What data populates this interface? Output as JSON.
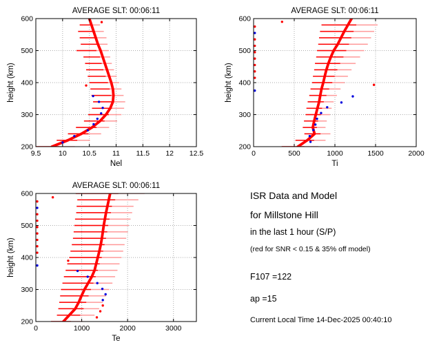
{
  "window": {
    "background": "#ffffff"
  },
  "info_panel": {
    "line1": "ISR Data and Model",
    "line2": "for Millstone Hill",
    "line3": "in the last 1 hour (S/P)",
    "line4": "(red for SNR < 0.15 & 35% off model)",
    "f107": "F107 =122",
    "ap": "ap =15",
    "local_time": "Current Local Time 14-Dec-2025 00:40:10"
  },
  "colors": {
    "model_curve": "#ff0000",
    "error_bar": "#ff0000",
    "error_bar_light": "#ff9999",
    "accepted_point": "#0000dd",
    "rejected_point": "#ff0000",
    "grid": "#aaaaaa",
    "axis": "#000000"
  },
  "chart_data": [
    {
      "type": "line",
      "title": "AVERAGE SLT: 00:06:11",
      "xlabel": "Nel",
      "ylabel": "height (km)",
      "xlim": [
        9.5,
        12.5
      ],
      "ylim": [
        200,
        600
      ],
      "xticks": [
        9.5,
        10,
        10.5,
        11,
        11.5,
        12,
        12.5
      ],
      "yticks": [
        200,
        300,
        400,
        500,
        600
      ],
      "grid": true,
      "legend_position": "none",
      "model_profile": {
        "heights": [
          200,
          220,
          240,
          260,
          280,
          300,
          320,
          340,
          360,
          380,
          400,
          420,
          440,
          460,
          480,
          500,
          520,
          540,
          560,
          580,
          600
        ],
        "values": [
          9.8,
          10.1,
          10.35,
          10.55,
          10.7,
          10.81,
          10.89,
          10.94,
          10.95,
          10.94,
          10.91,
          10.87,
          10.83,
          10.79,
          10.75,
          10.71,
          10.66,
          10.62,
          10.58,
          10.54,
          10.5
        ]
      },
      "error_bars": [
        [
          200,
          9.85,
          0.38
        ],
        [
          220,
          10.2,
          0.31
        ],
        [
          240,
          10.41,
          0.31
        ],
        [
          260,
          10.56,
          0.31
        ],
        [
          280,
          10.71,
          0.31
        ],
        [
          300,
          10.79,
          0.31
        ],
        [
          320,
          10.85,
          0.3
        ],
        [
          340,
          10.87,
          0.3
        ],
        [
          360,
          10.84,
          0.3
        ],
        [
          380,
          10.81,
          0.29
        ],
        [
          400,
          10.78,
          0.28
        ],
        [
          420,
          10.74,
          0.27
        ],
        [
          440,
          10.7,
          0.26
        ],
        [
          460,
          10.67,
          0.25
        ],
        [
          480,
          10.64,
          0.25
        ],
        [
          500,
          10.56,
          0.3
        ],
        [
          520,
          10.59,
          0.25
        ],
        [
          540,
          10.57,
          0.25
        ],
        [
          560,
          10.53,
          0.24
        ],
        [
          580,
          10.51,
          0.19
        ]
      ],
      "accepted_points": [
        [
          10.0,
          213
        ],
        [
          10.22,
          233
        ],
        [
          10.47,
          251
        ],
        [
          10.58,
          270
        ],
        [
          10.65,
          287
        ],
        [
          10.72,
          304
        ],
        [
          10.75,
          321
        ],
        [
          10.68,
          340
        ],
        [
          10.57,
          358
        ]
      ],
      "rejected_points": [
        [
          10.44,
          391
        ],
        [
          10.73,
          589
        ]
      ]
    },
    {
      "type": "line",
      "title": "AVERAGE SLT: 00:06:11",
      "xlabel": "Ti",
      "ylabel": "height (km)",
      "xlim": [
        0,
        2000
      ],
      "ylim": [
        200,
        600
      ],
      "xticks": [
        0,
        500,
        1000,
        1500,
        2000
      ],
      "yticks": [
        200,
        300,
        400,
        500,
        600
      ],
      "grid": true,
      "legend_position": "none",
      "model_profile": {
        "heights": [
          200,
          220,
          240,
          260,
          280,
          300,
          320,
          340,
          360,
          380,
          400,
          420,
          440,
          460,
          480,
          500,
          520,
          540,
          560,
          580,
          600
        ],
        "values": [
          545,
          660,
          750,
          728,
          745,
          765,
          785,
          806,
          820,
          835,
          857,
          875,
          895,
          920,
          950,
          985,
          1035,
          1075,
          1115,
          1160,
          1205
        ]
      },
      "error_bars": [
        [
          200,
          570,
          225
        ],
        [
          220,
          700,
          185
        ],
        [
          240,
          785,
          160
        ],
        [
          260,
          745,
          140
        ],
        [
          280,
          760,
          140
        ],
        [
          300,
          790,
          150
        ],
        [
          320,
          805,
          155
        ],
        [
          340,
          825,
          160
        ],
        [
          360,
          855,
          170
        ],
        [
          380,
          885,
          185
        ],
        [
          400,
          920,
          200
        ],
        [
          420,
          945,
          215
        ],
        [
          440,
          975,
          230
        ],
        [
          460,
          1005,
          250
        ],
        [
          480,
          1040,
          270
        ],
        [
          500,
          1070,
          290
        ],
        [
          520,
          1100,
          305
        ],
        [
          540,
          1125,
          320
        ],
        [
          560,
          1150,
          333
        ],
        [
          580,
          1180,
          345
        ]
      ],
      "accepted_points": [
        [
          700,
          215
        ],
        [
          690,
          233
        ],
        [
          735,
          252
        ],
        [
          760,
          269
        ],
        [
          780,
          287
        ],
        [
          830,
          305
        ],
        [
          905,
          323
        ],
        [
          1080,
          338
        ],
        [
          1220,
          357
        ],
        [
          15,
          375
        ],
        [
          15,
          555
        ]
      ],
      "rejected_points": [
        [
          350,
          590
        ],
        [
          1480,
          393
        ],
        [
          15,
          415
        ],
        [
          15,
          435
        ],
        [
          15,
          455
        ],
        [
          15,
          475
        ],
        [
          15,
          495
        ],
        [
          15,
          515
        ],
        [
          15,
          535
        ],
        [
          15,
          575
        ]
      ]
    },
    {
      "type": "line",
      "title": "AVERAGE SLT: 00:06:11",
      "xlabel": "Te",
      "ylabel": "height (km)",
      "xlim": [
        0,
        3500
      ],
      "ylim": [
        200,
        600
      ],
      "xticks": [
        0,
        1000,
        2000,
        3000
      ],
      "yticks": [
        200,
        300,
        400,
        500,
        600
      ],
      "grid": true,
      "legend_position": "none",
      "model_profile": {
        "heights": [
          200,
          220,
          240,
          260,
          280,
          300,
          320,
          340,
          360,
          380,
          400,
          420,
          440,
          460,
          480,
          500,
          520,
          540,
          560,
          580,
          600
        ],
        "values": [
          600,
          730,
          860,
          935,
          995,
          1060,
          1140,
          1220,
          1280,
          1315,
          1350,
          1385,
          1415,
          1440,
          1460,
          1480,
          1505,
          1530,
          1560,
          1590,
          1620
        ]
      },
      "error_bars": [
        [
          200,
          680,
          350
        ],
        [
          220,
          870,
          410
        ],
        [
          240,
          935,
          445
        ],
        [
          260,
          985,
          475
        ],
        [
          280,
          1030,
          500
        ],
        [
          300,
          1075,
          525
        ],
        [
          320,
          1125,
          545
        ],
        [
          340,
          1170,
          558
        ],
        [
          360,
          1215,
          565
        ],
        [
          380,
          1255,
          570
        ],
        [
          400,
          1300,
          570
        ],
        [
          420,
          1330,
          575
        ],
        [
          440,
          1360,
          575
        ],
        [
          460,
          1390,
          580
        ],
        [
          480,
          1415,
          590
        ],
        [
          500,
          1435,
          595
        ],
        [
          520,
          1460,
          605
        ],
        [
          540,
          1490,
          610
        ],
        [
          560,
          1510,
          620
        ],
        [
          580,
          1570,
          665
        ],
        [
          600,
          1620,
          750
        ]
      ],
      "accepted_points": [
        [
          910,
          358
        ],
        [
          1130,
          340
        ],
        [
          1340,
          320
        ],
        [
          1450,
          302
        ],
        [
          1520,
          285
        ],
        [
          1460,
          267
        ],
        [
          30,
          375
        ],
        [
          30,
          555
        ]
      ],
      "rejected_points": [
        [
          370,
          588
        ],
        [
          705,
          390
        ],
        [
          1460,
          250
        ],
        [
          1405,
          232
        ],
        [
          1330,
          213
        ],
        [
          30,
          415
        ],
        [
          30,
          435
        ],
        [
          30,
          455
        ],
        [
          30,
          475
        ],
        [
          30,
          495
        ],
        [
          30,
          515
        ],
        [
          30,
          535
        ],
        [
          30,
          575
        ]
      ]
    }
  ]
}
